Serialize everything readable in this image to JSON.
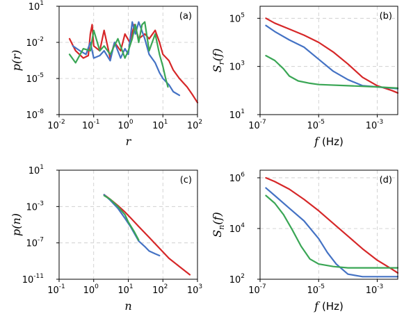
{
  "colors": {
    "red": "#d62728",
    "blue": "#4472c4",
    "green": "#3aa655"
  },
  "chart_data": [
    {
      "panel_label": "(a)",
      "type": "line",
      "xscale": "log",
      "yscale": "log",
      "xlim_exp": [
        -2,
        2
      ],
      "ylim_exp": [
        -8,
        1
      ],
      "x_ticks": [
        "10",
        "10",
        "10",
        "10",
        "10"
      ],
      "x_tick_exps": [
        "-2",
        "-1",
        "0",
        "1",
        "2"
      ],
      "y_ticks": [
        "10",
        "10",
        "10",
        "10"
      ],
      "y_tick_exps": [
        "-8",
        "-5",
        "-2",
        "1"
      ],
      "xlabel": "r",
      "ylabel": "p(r)",
      "grid": true,
      "series": [
        {
          "color": "red",
          "points": [
            [
              0.02,
              0.02
            ],
            [
              0.03,
              0.002
            ],
            [
              0.05,
              0.0005
            ],
            [
              0.07,
              0.0008
            ],
            [
              0.08,
              0.05
            ],
            [
              0.09,
              0.3
            ],
            [
              0.1,
              0.005
            ],
            [
              0.15,
              0.002
            ],
            [
              0.2,
              0.1
            ],
            [
              0.3,
              0.0005
            ],
            [
              0.4,
              0.01
            ],
            [
              0.6,
              0.002
            ],
            [
              0.8,
              0.05
            ],
            [
              1.1,
              0.01
            ],
            [
              1.5,
              0.3
            ],
            [
              2,
              0.02
            ],
            [
              3,
              0.05
            ],
            [
              4,
              0.02
            ],
            [
              6,
              0.1
            ],
            [
              8,
              0.01
            ],
            [
              10,
              0.001
            ],
            [
              15,
              0.0003
            ],
            [
              20,
              5e-05
            ],
            [
              30,
              1e-05
            ],
            [
              50,
              2e-06
            ],
            [
              70,
              5e-07
            ],
            [
              100,
              1e-07
            ]
          ]
        },
        {
          "color": "blue",
          "points": [
            [
              0.025,
              0.005
            ],
            [
              0.04,
              0.002
            ],
            [
              0.06,
              0.001
            ],
            [
              0.08,
              0.01
            ],
            [
              0.1,
              0.0005
            ],
            [
              0.15,
              0.0008
            ],
            [
              0.2,
              0.002
            ],
            [
              0.3,
              0.0003
            ],
            [
              0.4,
              0.01
            ],
            [
              0.6,
              0.0005
            ],
            [
              0.8,
              0.003
            ],
            [
              1,
              0.001
            ],
            [
              1.3,
              0.5
            ],
            [
              1.6,
              0.05
            ],
            [
              2,
              0.5
            ],
            [
              3,
              0.02
            ],
            [
              4,
              0.001
            ],
            [
              6,
              0.0002
            ],
            [
              8,
              3e-05
            ],
            [
              10,
              1e-05
            ],
            [
              15,
              3e-06
            ],
            [
              20,
              8e-07
            ],
            [
              30,
              4e-07
            ]
          ]
        },
        {
          "color": "green",
          "points": [
            [
              0.02,
              0.001
            ],
            [
              0.03,
              0.0002
            ],
            [
              0.05,
              0.003
            ],
            [
              0.08,
              0.002
            ],
            [
              0.1,
              0.1
            ],
            [
              0.15,
              0.002
            ],
            [
              0.2,
              0.005
            ],
            [
              0.3,
              0.001
            ],
            [
              0.5,
              0.02
            ],
            [
              0.8,
              0.0005
            ],
            [
              1,
              0.002
            ],
            [
              1.3,
              0.02
            ],
            [
              1.6,
              0.3
            ],
            [
              2,
              0.01
            ],
            [
              2.5,
              0.3
            ],
            [
              3,
              0.5
            ],
            [
              4,
              0.002
            ],
            [
              6,
              0.05
            ],
            [
              8,
              0.001
            ],
            [
              10,
              0.0001
            ],
            [
              12,
              1e-05
            ],
            [
              14,
              2e-06
            ]
          ]
        }
      ]
    },
    {
      "panel_label": "(b)",
      "type": "line",
      "xscale": "log",
      "yscale": "log",
      "xlim_exp": [
        -7,
        -2.3
      ],
      "ylim_exp": [
        1,
        5.5
      ],
      "x_ticks": [
        "10",
        "10",
        "10"
      ],
      "x_tick_exps": [
        "-7",
        "-5",
        "-3"
      ],
      "y_ticks": [
        "10",
        "10",
        "10"
      ],
      "y_tick_exps": [
        "1",
        "3",
        "5"
      ],
      "xlabel_var": "f",
      "xlabel_unit": "(Hz)",
      "ylabel": "S",
      "ylabel_sub": "r",
      "ylabel_tail": "(f)",
      "grid": true,
      "series": [
        {
          "color": "red",
          "points": [
            [
              -6.8,
              5.0
            ],
            [
              -6.5,
              4.8
            ],
            [
              -6.0,
              4.55
            ],
            [
              -5.5,
              4.3
            ],
            [
              -5.0,
              4.0
            ],
            [
              -4.5,
              3.6
            ],
            [
              -4.0,
              3.1
            ],
            [
              -3.5,
              2.55
            ],
            [
              -3.0,
              2.2
            ],
            [
              -2.5,
              2.0
            ],
            [
              -2.3,
              1.9
            ]
          ]
        },
        {
          "color": "blue",
          "points": [
            [
              -6.8,
              4.7
            ],
            [
              -6.5,
              4.45
            ],
            [
              -6.0,
              4.1
            ],
            [
              -5.5,
              3.8
            ],
            [
              -5.0,
              3.3
            ],
            [
              -4.5,
              2.8
            ],
            [
              -4.0,
              2.45
            ],
            [
              -3.5,
              2.2
            ],
            [
              -3.0,
              2.15
            ],
            [
              -2.5,
              2.1
            ],
            [
              -2.3,
              2.08
            ]
          ]
        },
        {
          "color": "green",
          "points": [
            [
              -6.8,
              3.45
            ],
            [
              -6.5,
              3.25
            ],
            [
              -6.2,
              2.9
            ],
            [
              -6.0,
              2.6
            ],
            [
              -5.7,
              2.4
            ],
            [
              -5.3,
              2.3
            ],
            [
              -5.0,
              2.25
            ],
            [
              -4.0,
              2.2
            ],
            [
              -3.0,
              2.15
            ],
            [
              -2.3,
              2.1
            ]
          ]
        }
      ]
    },
    {
      "panel_label": "(c)",
      "type": "line",
      "xscale": "log",
      "yscale": "log",
      "xlim_exp": [
        -1,
        3
      ],
      "ylim_exp": [
        -11,
        1
      ],
      "x_ticks": [
        "10",
        "10",
        "10",
        "10",
        "10"
      ],
      "x_tick_exps": [
        "-1",
        "0",
        "1",
        "2",
        "3"
      ],
      "y_ticks": [
        "10",
        "10",
        "10",
        "10"
      ],
      "y_tick_exps": [
        "-11",
        "-7",
        "-3",
        "1"
      ],
      "xlabel": "n",
      "ylabel": "p(n)",
      "grid": true,
      "series": [
        {
          "color": "red",
          "points": [
            [
              2,
              -1.7
            ],
            [
              3,
              -2.2
            ],
            [
              5,
              -2.9
            ],
            [
              8,
              -3.6
            ],
            [
              12,
              -4.3
            ],
            [
              20,
              -5.2
            ],
            [
              40,
              -6.4
            ],
            [
              80,
              -7.6
            ],
            [
              150,
              -8.7
            ],
            [
              300,
              -9.6
            ],
            [
              600,
              -10.5
            ]
          ]
        },
        {
          "color": "blue",
          "points": [
            [
              2,
              -1.7
            ],
            [
              3,
              -2.3
            ],
            [
              5,
              -3.2
            ],
            [
              8,
              -4.3
            ],
            [
              12,
              -5.3
            ],
            [
              20,
              -6.8
            ],
            [
              30,
              -7.4
            ],
            [
              40,
              -7.9
            ],
            [
              60,
              -8.2
            ],
            [
              80,
              -8.4
            ]
          ]
        },
        {
          "color": "green",
          "points": [
            [
              2,
              -1.8
            ],
            [
              3,
              -2.2
            ],
            [
              5,
              -3.0
            ],
            [
              8,
              -3.9
            ],
            [
              10,
              -4.7
            ],
            [
              15,
              -5.8
            ],
            [
              20,
              -6.7
            ]
          ]
        }
      ]
    },
    {
      "panel_label": "(d)",
      "type": "line",
      "xscale": "log",
      "yscale": "log",
      "xlim_exp": [
        -7,
        -2.3
      ],
      "ylim_exp": [
        2,
        6.3
      ],
      "x_ticks": [
        "10",
        "10",
        "10"
      ],
      "x_tick_exps": [
        "-7",
        "-5",
        "-3"
      ],
      "y_ticks": [
        "10",
        "10",
        "10"
      ],
      "y_tick_exps": [
        "2",
        "4",
        "6"
      ],
      "xlabel_var": "f",
      "xlabel_unit": "(Hz)",
      "ylabel": "S",
      "ylabel_sub": "n",
      "ylabel_tail": "(f)",
      "grid": true,
      "series": [
        {
          "color": "red",
          "points": [
            [
              -6.8,
              6.0
            ],
            [
              -6.5,
              5.85
            ],
            [
              -6.0,
              5.55
            ],
            [
              -5.5,
              5.15
            ],
            [
              -5.0,
              4.7
            ],
            [
              -4.5,
              4.2
            ],
            [
              -4.0,
              3.7
            ],
            [
              -3.5,
              3.2
            ],
            [
              -3.0,
              2.75
            ],
            [
              -2.5,
              2.4
            ],
            [
              -2.3,
              2.25
            ]
          ]
        },
        {
          "color": "blue",
          "points": [
            [
              -6.8,
              5.6
            ],
            [
              -6.5,
              5.3
            ],
            [
              -6.0,
              4.8
            ],
            [
              -5.5,
              4.3
            ],
            [
              -5.0,
              3.6
            ],
            [
              -4.7,
              3.05
            ],
            [
              -4.4,
              2.6
            ],
            [
              -4.0,
              2.2
            ],
            [
              -3.5,
              2.1
            ],
            [
              -3.0,
              2.1
            ],
            [
              -2.3,
              2.1
            ]
          ]
        },
        {
          "color": "green",
          "points": [
            [
              -6.8,
              5.3
            ],
            [
              -6.5,
              5.0
            ],
            [
              -6.2,
              4.55
            ],
            [
              -5.9,
              3.95
            ],
            [
              -5.6,
              3.3
            ],
            [
              -5.3,
              2.8
            ],
            [
              -5.0,
              2.6
            ],
            [
              -4.5,
              2.5
            ],
            [
              -4.0,
              2.45
            ],
            [
              -3.0,
              2.45
            ],
            [
              -2.3,
              2.45
            ]
          ]
        }
      ]
    }
  ]
}
